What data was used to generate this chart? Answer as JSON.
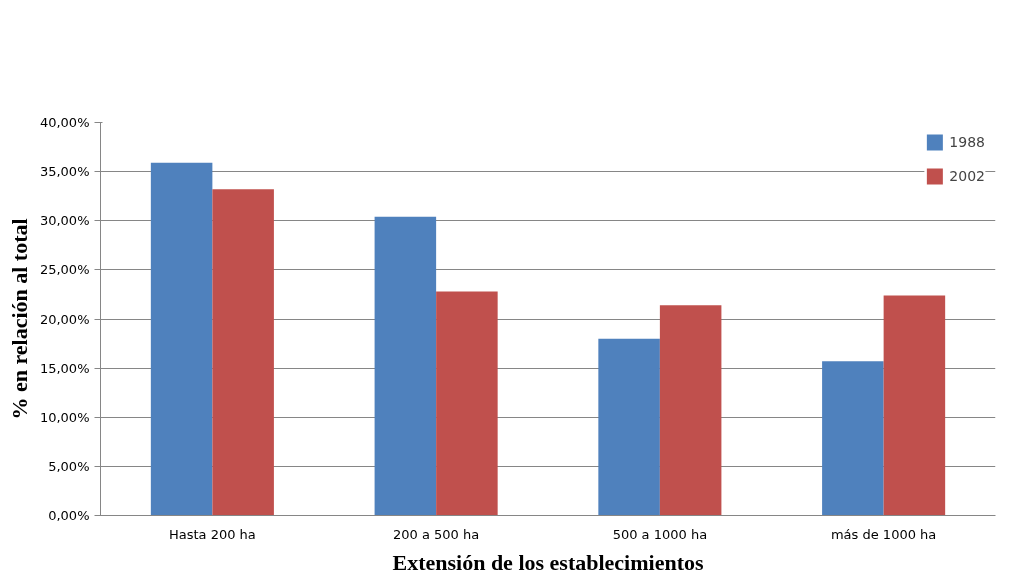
{
  "chart_data": {
    "type": "bar",
    "xlabel": "Extensión de los establecimientos",
    "ylabel": "% en relación al total",
    "categories": [
      "Hasta 200 ha",
      "200 a 500 ha",
      "500 a 1000 ha",
      "más de 1000 ha"
    ],
    "series": [
      {
        "name": "1988",
        "color": "#4f81bd",
        "values": [
          35.9,
          30.4,
          18.0,
          15.7
        ]
      },
      {
        "name": "2002",
        "color": "#c0504d",
        "values": [
          33.2,
          22.8,
          21.4,
          22.4
        ]
      }
    ],
    "ylim": [
      0,
      40
    ],
    "yticks": [
      {
        "value": 0,
        "label": "0,00%"
      },
      {
        "value": 5,
        "label": "5,00%"
      },
      {
        "value": 10,
        "label": "10,00%"
      },
      {
        "value": 15,
        "label": "15,00%"
      },
      {
        "value": 20,
        "label": "20,00%"
      },
      {
        "value": 25,
        "label": "25,00%"
      },
      {
        "value": 30,
        "label": "30,00%"
      },
      {
        "value": 35,
        "label": "35,00%"
      },
      {
        "value": 40,
        "label": "40,00%"
      }
    ],
    "grid": "y",
    "legend": "top right"
  }
}
